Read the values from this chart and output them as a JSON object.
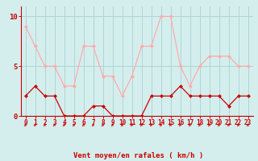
{
  "x": [
    0,
    1,
    2,
    3,
    4,
    5,
    6,
    7,
    8,
    9,
    10,
    11,
    12,
    13,
    14,
    15,
    16,
    17,
    18,
    19,
    20,
    21,
    22,
    23
  ],
  "vent_moyen": [
    2,
    3,
    2,
    2,
    0,
    0,
    0,
    1,
    1,
    0,
    0,
    0,
    0,
    2,
    2,
    2,
    3,
    2,
    2,
    2,
    2,
    1,
    2,
    2
  ],
  "rafales": [
    9,
    7,
    5,
    5,
    3,
    3,
    7,
    7,
    4,
    4,
    2,
    4,
    7,
    7,
    10,
    10,
    5,
    3,
    5,
    6,
    6,
    6,
    5,
    5
  ],
  "color_moyen": "#cc0000",
  "color_rafales": "#ffaaaa",
  "bg_color": "#d4eeee",
  "grid_color": "#b0d4d4",
  "xlabel": "Vent moyen/en rafales ( km/h )",
  "ylim": [
    0,
    11
  ],
  "xlim": [
    -0.5,
    23.5
  ],
  "yticks": [
    0,
    5,
    10
  ],
  "xticks": [
    0,
    1,
    2,
    3,
    4,
    5,
    6,
    7,
    8,
    9,
    10,
    11,
    12,
    13,
    14,
    15,
    16,
    17,
    18,
    19,
    20,
    21,
    22,
    23
  ]
}
